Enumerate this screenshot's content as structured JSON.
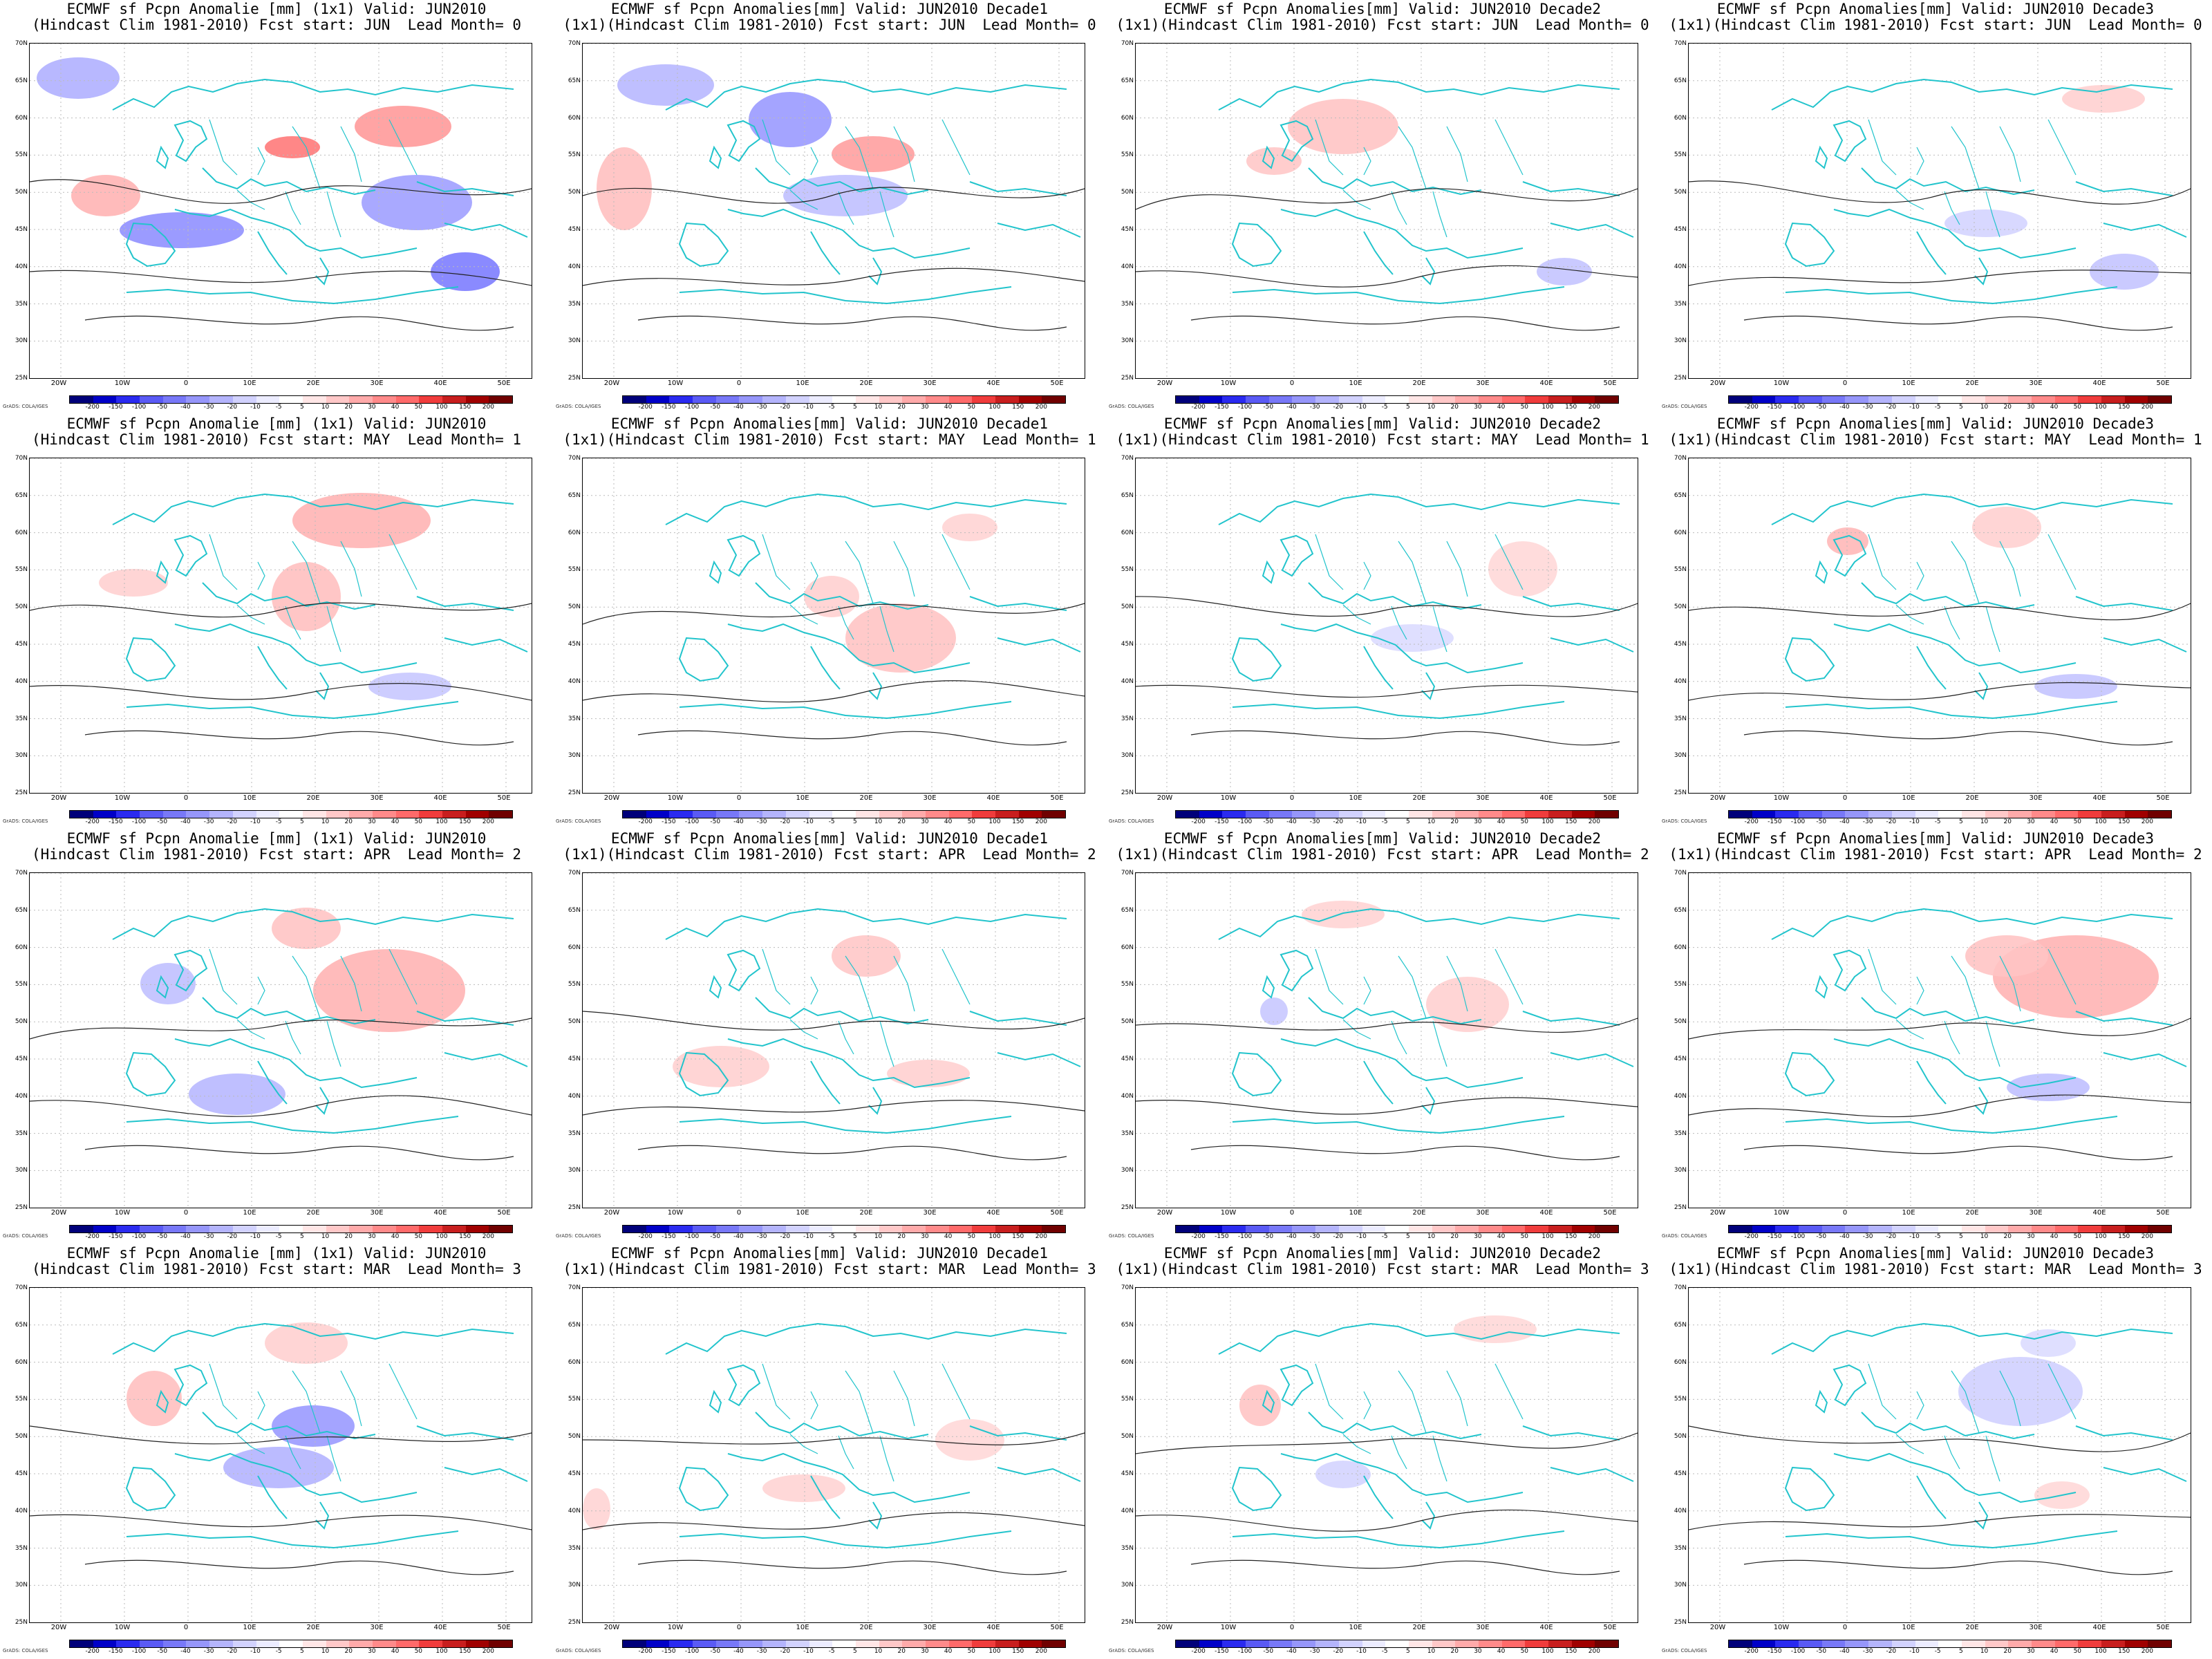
{
  "panels": [
    {
      "line1": "ECMWF sf Pcpn Anomalie [mm] (1x1) Valid: JUN2010",
      "line2": "(Hindcast Clim 1981-2010) Fcst start: JUN  Lead Month= 0"
    },
    {
      "line1": "ECMWF sf Pcpn Anomalies[mm] Valid: JUN2010 Decade1",
      "line2": "(1x1)(Hindcast Clim 1981-2010) Fcst start: JUN  Lead Month= 0"
    },
    {
      "line1": "ECMWF sf Pcpn Anomalies[mm] Valid: JUN2010 Decade2",
      "line2": "(1x1)(Hindcast Clim 1981-2010) Fcst start: JUN  Lead Month= 0"
    },
    {
      "line1": "ECMWF sf Pcpn Anomalies[mm] Valid: JUN2010 Decade3",
      "line2": "(1x1)(Hindcast Clim 1981-2010) Fcst start: JUN  Lead Month= 0"
    },
    {
      "line1": "ECMWF sf Pcpn Anomalie [mm] (1x1) Valid: JUN2010",
      "line2": "(Hindcast Clim 1981-2010) Fcst start: MAY  Lead Month= 1"
    },
    {
      "line1": "ECMWF sf Pcpn Anomalies[mm] Valid: JUN2010 Decade1",
      "line2": "(1x1)(Hindcast Clim 1981-2010) Fcst start: MAY  Lead Month= 1"
    },
    {
      "line1": "ECMWF sf Pcpn Anomalies[mm] Valid: JUN2010 Decade2",
      "line2": "(1x1)(Hindcast Clim 1981-2010) Fcst start: MAY  Lead Month= 1"
    },
    {
      "line1": "ECMWF sf Pcpn Anomalies[mm] Valid: JUN2010 Decade3",
      "line2": "(1x1)(Hindcast Clim 1981-2010) Fcst start: MAY  Lead Month= 1"
    },
    {
      "line1": "ECMWF sf Pcpn Anomalie [mm] (1x1) Valid: JUN2010",
      "line2": "(Hindcast Clim 1981-2010) Fcst start: APR  Lead Month= 2"
    },
    {
      "line1": "ECMWF sf Pcpn Anomalies[mm] Valid: JUN2010 Decade1",
      "line2": "(1x1)(Hindcast Clim 1981-2010) Fcst start: APR  Lead Month= 2"
    },
    {
      "line1": "ECMWF sf Pcpn Anomalies[mm] Valid: JUN2010 Decade2",
      "line2": "(1x1)(Hindcast Clim 1981-2010) Fcst start: APR  Lead Month= 2"
    },
    {
      "line1": "ECMWF sf Pcpn Anomalies[mm] Valid: JUN2010 Decade3",
      "line2": "(1x1)(Hindcast Clim 1981-2010) Fcst start: APR  Lead Month= 2"
    },
    {
      "line1": "ECMWF sf Pcpn Anomalie [mm] (1x1) Valid: JUN2010",
      "line2": "(Hindcast Clim 1981-2010) Fcst start: MAR  Lead Month= 3"
    },
    {
      "line1": "ECMWF sf Pcpn Anomalies[mm] Valid: JUN2010 Decade1",
      "line2": "(1x1)(Hindcast Clim 1981-2010) Fcst start: MAR  Lead Month= 3"
    },
    {
      "line1": "ECMWF sf Pcpn Anomalies[mm] Valid: JUN2010 Decade2",
      "line2": "(1x1)(Hindcast Clim 1981-2010) Fcst start: MAR  Lead Month= 3"
    },
    {
      "line1": "ECMWF sf Pcpn Anomalies[mm] Valid: JUN2010 Decade3",
      "line2": "(1x1)(Hindcast Clim 1981-2010) Fcst start: MAR  Lead Month= 3"
    }
  ],
  "lat_labels": [
    "70N",
    "65N",
    "60N",
    "55N",
    "50N",
    "45N",
    "40N",
    "35N",
    "30N",
    "25N"
  ],
  "lon_labels": [
    "20W",
    "10W",
    "0",
    "10E",
    "20E",
    "30E",
    "40E",
    "50E"
  ],
  "colorbar": {
    "labels": [
      "-200",
      "-150",
      "-100",
      "-50",
      "-40",
      "-30",
      "-20",
      "-10",
      "-5",
      "5",
      "10",
      "20",
      "30",
      "40",
      "50",
      "100",
      "150",
      "200"
    ],
    "colors": [
      "#00007a",
      "#0000c8",
      "#2a2af0",
      "#5a5af5",
      "#7878f8",
      "#9696fa",
      "#b4b4fc",
      "#d2d2fe",
      "#ececff",
      "#ffffff",
      "#ffe6e6",
      "#ffc8c8",
      "#ffaaaa",
      "#ff8a8a",
      "#ff6a6a",
      "#f03c3c",
      "#c81e1e",
      "#a00000",
      "#700000"
    ]
  },
  "credit": "GrADS: COLA/IGES"
}
